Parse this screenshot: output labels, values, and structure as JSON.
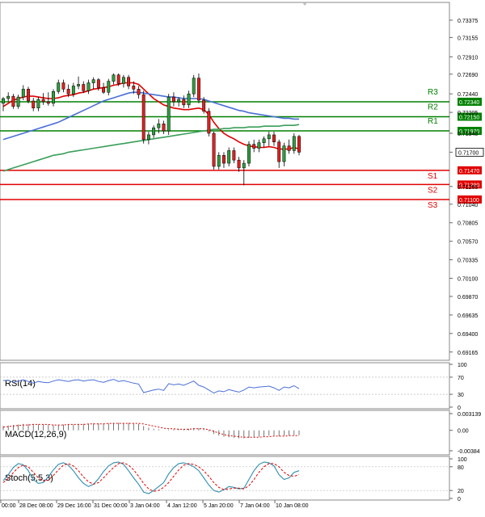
{
  "chart_data": {
    "type": "line",
    "title": "",
    "y_axis": {
      "ticks": [
        "0.73375",
        "0.73155",
        "0.72910",
        "0.72690",
        "0.72440",
        "0.72205",
        "0.71940",
        "0.71700",
        "0.71265",
        "0.71040",
        "0.70805",
        "0.70570",
        "0.70335",
        "0.70100",
        "0.69870",
        "0.69635",
        "0.69400",
        "0.69165"
      ],
      "ylim": [
        0.6906,
        0.736
      ]
    },
    "x_axis": {
      "tick_labels": [
        "00:00",
        "28 Dec 08:00",
        "29 Dec 16:00",
        "31 Dec 00:00",
        "3 Jan 04:00",
        "4 Jan 12:00",
        "5 Jan 20:00",
        "7 Jan 04:00",
        "10 Jan 08:00"
      ]
    },
    "levels": [
      {
        "name": "R3",
        "value": 0.7234,
        "label": "0.72340",
        "color": "#008000"
      },
      {
        "name": "R2",
        "value": 0.7215,
        "label": "0.72150",
        "color": "#008000"
      },
      {
        "name": "R1",
        "value": 0.7197,
        "label": "0.71970",
        "color": "#008000"
      },
      {
        "name": "S1",
        "value": 0.7147,
        "label": "0.71470",
        "color": "#e00000"
      },
      {
        "name": "S2",
        "value": 0.7129,
        "label": "0.71290",
        "color": "#e00000"
      },
      {
        "name": "S3",
        "value": 0.711,
        "label": "0.71100",
        "color": "#e00000"
      }
    ],
    "current_price": {
      "value": 0.717,
      "label": "0.71700"
    },
    "candles": [
      [
        0.7232,
        0.724,
        0.7222,
        0.7238
      ],
      [
        0.7238,
        0.7246,
        0.7234,
        0.7241
      ],
      [
        0.7241,
        0.7244,
        0.7225,
        0.7228
      ],
      [
        0.7228,
        0.7243,
        0.7225,
        0.724
      ],
      [
        0.724,
        0.7255,
        0.7236,
        0.725
      ],
      [
        0.725,
        0.7253,
        0.7232,
        0.7235
      ],
      [
        0.7235,
        0.7239,
        0.7222,
        0.7226
      ],
      [
        0.7226,
        0.724,
        0.7222,
        0.7237
      ],
      [
        0.7237,
        0.7245,
        0.723,
        0.7234
      ],
      [
        0.7234,
        0.7246,
        0.7229,
        0.7232
      ],
      [
        0.7232,
        0.725,
        0.7228,
        0.7247
      ],
      [
        0.7247,
        0.7262,
        0.7244,
        0.7258
      ],
      [
        0.7258,
        0.7262,
        0.7246,
        0.725
      ],
      [
        0.725,
        0.7256,
        0.724,
        0.7244
      ],
      [
        0.7244,
        0.7258,
        0.724,
        0.7254
      ],
      [
        0.7254,
        0.7266,
        0.725,
        0.7256
      ],
      [
        0.7256,
        0.726,
        0.7245,
        0.7248
      ],
      [
        0.7248,
        0.7262,
        0.7244,
        0.7258
      ],
      [
        0.7258,
        0.7265,
        0.725,
        0.7262
      ],
      [
        0.7262,
        0.7264,
        0.7248,
        0.7252
      ],
      [
        0.7252,
        0.7258,
        0.7244,
        0.7246
      ],
      [
        0.7246,
        0.7263,
        0.7242,
        0.726
      ],
      [
        0.726,
        0.727,
        0.7256,
        0.7268
      ],
      [
        0.7268,
        0.727,
        0.7254,
        0.7257
      ],
      [
        0.7257,
        0.7268,
        0.7252,
        0.7265
      ],
      [
        0.7265,
        0.7268,
        0.725,
        0.7254
      ],
      [
        0.7254,
        0.726,
        0.7244,
        0.725
      ],
      [
        0.725,
        0.7254,
        0.7238,
        0.7243
      ],
      [
        0.7243,
        0.7248,
        0.7181,
        0.7186
      ],
      [
        0.7186,
        0.7196,
        0.718,
        0.7192
      ],
      [
        0.7192,
        0.7204,
        0.7188,
        0.7201
      ],
      [
        0.7201,
        0.7212,
        0.7194,
        0.7206
      ],
      [
        0.7206,
        0.721,
        0.7193,
        0.7197
      ],
      [
        0.7197,
        0.7244,
        0.7192,
        0.724
      ],
      [
        0.724,
        0.7246,
        0.7228,
        0.7234
      ],
      [
        0.7234,
        0.724,
        0.7228,
        0.7237
      ],
      [
        0.7237,
        0.7242,
        0.7226,
        0.723
      ],
      [
        0.723,
        0.7248,
        0.7226,
        0.7244
      ],
      [
        0.7244,
        0.7268,
        0.724,
        0.7264
      ],
      [
        0.7264,
        0.727,
        0.7232,
        0.7236
      ],
      [
        0.7236,
        0.724,
        0.7219,
        0.7222
      ],
      [
        0.7222,
        0.7226,
        0.719,
        0.7194
      ],
      [
        0.7194,
        0.7196,
        0.7148,
        0.7152
      ],
      [
        0.7152,
        0.717,
        0.7148,
        0.7166
      ],
      [
        0.7166,
        0.717,
        0.715,
        0.7156
      ],
      [
        0.7156,
        0.7176,
        0.7152,
        0.7172
      ],
      [
        0.7172,
        0.7176,
        0.7156,
        0.716
      ],
      [
        0.716,
        0.7164,
        0.7145,
        0.715
      ],
      [
        0.715,
        0.716,
        0.7128,
        0.7156
      ],
      [
        0.7156,
        0.7184,
        0.7152,
        0.718
      ],
      [
        0.718,
        0.7186,
        0.717,
        0.7175
      ],
      [
        0.7175,
        0.7186,
        0.717,
        0.7182
      ],
      [
        0.7182,
        0.719,
        0.7176,
        0.7187
      ],
      [
        0.7187,
        0.7196,
        0.7178,
        0.7192
      ],
      [
        0.7192,
        0.7196,
        0.7178,
        0.7183
      ],
      [
        0.7183,
        0.7186,
        0.715,
        0.7158
      ],
      [
        0.7158,
        0.7182,
        0.7152,
        0.7178
      ],
      [
        0.7178,
        0.7186,
        0.7168,
        0.7172
      ],
      [
        0.7172,
        0.7194,
        0.7168,
        0.719
      ],
      [
        0.719,
        0.7192,
        0.7166,
        0.717
      ]
    ],
    "moving_averages": [
      {
        "name": "MA red",
        "color": "#e00000",
        "values": [
          0.7228,
          0.7232,
          0.7236,
          0.7238,
          0.724,
          0.7241,
          0.7241,
          0.724,
          0.7239,
          0.7238,
          0.7238,
          0.7239,
          0.7241,
          0.7242,
          0.7243,
          0.7245,
          0.7246,
          0.7248,
          0.725,
          0.7251,
          0.7252,
          0.7253,
          0.7255,
          0.7256,
          0.7258,
          0.7258,
          0.7258,
          0.7256,
          0.725,
          0.7244,
          0.7238,
          0.7234,
          0.723,
          0.7228,
          0.7226,
          0.7225,
          0.7224,
          0.7224,
          0.7225,
          0.7226,
          0.7224,
          0.7218,
          0.7208,
          0.72,
          0.7194,
          0.719,
          0.7187,
          0.7183,
          0.718,
          0.7178,
          0.7177,
          0.7176,
          0.7176,
          0.7177,
          0.7176,
          0.7174,
          0.7174,
          0.7174,
          0.7176,
          0.7174
        ]
      },
      {
        "name": "MA blue",
        "color": "#4a6fd6",
        "values": [
          0.7186,
          0.7188,
          0.719,
          0.7192,
          0.7194,
          0.7196,
          0.7198,
          0.72,
          0.7202,
          0.7204,
          0.7206,
          0.7208,
          0.7211,
          0.7214,
          0.7217,
          0.722,
          0.7223,
          0.7226,
          0.7229,
          0.7232,
          0.7235,
          0.7237,
          0.7239,
          0.7241,
          0.7243,
          0.7245,
          0.7246,
          0.7246,
          0.7245,
          0.7244,
          0.7243,
          0.7242,
          0.7241,
          0.724,
          0.724,
          0.7239,
          0.7238,
          0.7238,
          0.7238,
          0.7238,
          0.7237,
          0.7235,
          0.7233,
          0.7231,
          0.7229,
          0.7227,
          0.7225,
          0.7223,
          0.7222,
          0.722,
          0.7219,
          0.7218,
          0.7217,
          0.7216,
          0.7215,
          0.7214,
          0.7213,
          0.7213,
          0.7212,
          0.7212
        ]
      },
      {
        "name": "MA green",
        "color": "#3a9e5a",
        "values": [
          0.7146,
          0.7148,
          0.715,
          0.7152,
          0.7154,
          0.7156,
          0.7158,
          0.716,
          0.7162,
          0.7164,
          0.7166,
          0.7167,
          0.7168,
          0.717,
          0.7171,
          0.7172,
          0.7173,
          0.7174,
          0.7175,
          0.7176,
          0.7177,
          0.7178,
          0.7179,
          0.718,
          0.7181,
          0.7182,
          0.7183,
          0.7184,
          0.7185,
          0.7186,
          0.7187,
          0.7188,
          0.7189,
          0.719,
          0.7191,
          0.7192,
          0.7193,
          0.7194,
          0.7195,
          0.7196,
          0.7197,
          0.7198,
          0.7199,
          0.7199,
          0.72,
          0.72,
          0.7201,
          0.7201,
          0.7201,
          0.7202,
          0.7202,
          0.7202,
          0.7203,
          0.7203,
          0.7203,
          0.7203,
          0.7204,
          0.7204,
          0.7204,
          0.7205
        ]
      }
    ],
    "indicators": {
      "rsi": {
        "label": "RSI(14)",
        "ticks": [
          "100",
          "70",
          "30",
          "0"
        ],
        "ylim": [
          0,
          100
        ],
        "color": "#4a6fd6",
        "values": [
          62,
          63,
          58,
          61,
          64,
          60,
          56,
          60,
          58,
          57,
          61,
          64,
          62,
          60,
          63,
          64,
          61,
          63,
          64,
          60,
          58,
          62,
          65,
          60,
          62,
          59,
          56,
          54,
          34,
          37,
          40,
          42,
          39,
          55,
          52,
          54,
          51,
          56,
          61,
          51,
          47,
          40,
          33,
          38,
          36,
          41,
          38,
          35,
          40,
          47,
          45,
          47,
          48,
          49,
          45,
          39,
          47,
          45,
          50,
          43
        ]
      },
      "macd": {
        "label": "MACD(12,26,9)",
        "ticks": [
          "0.003139",
          "0.00",
          "-0.00384"
        ],
        "ylim": [
          -0.00384,
          0.003139
        ],
        "color": "#e00000",
        "histogram": [
          0.0008,
          0.0009,
          0.001,
          0.0011,
          0.0012,
          0.0012,
          0.0012,
          0.0011,
          0.0011,
          0.001,
          0.001,
          0.001,
          0.0011,
          0.0011,
          0.0011,
          0.0012,
          0.0012,
          0.0012,
          0.0013,
          0.0013,
          0.0013,
          0.0013,
          0.0014,
          0.0014,
          0.0014,
          0.0014,
          0.0013,
          0.0012,
          0.0008,
          0.0005,
          0.0003,
          0.0002,
          0.0,
          0.0001,
          0.0002,
          0.0002,
          0.0002,
          0.0003,
          0.0004,
          0.0004,
          0.0002,
          -0.0002,
          -0.0007,
          -0.001,
          -0.0012,
          -0.0013,
          -0.0014,
          -0.0015,
          -0.0015,
          -0.0014,
          -0.0013,
          -0.0012,
          -0.0011,
          -0.001,
          -0.001,
          -0.0011,
          -0.001,
          -0.001,
          -0.0009,
          -0.0009
        ],
        "signal": [
          0.0006,
          0.0007,
          0.0008,
          0.0009,
          0.001,
          0.001,
          0.0011,
          0.0011,
          0.0011,
          0.0011,
          0.001,
          0.001,
          0.001,
          0.0011,
          0.0011,
          0.0011,
          0.0011,
          0.0012,
          0.0012,
          0.0012,
          0.0012,
          0.0013,
          0.0013,
          0.0013,
          0.0013,
          0.0013,
          0.0013,
          0.0013,
          0.0012,
          0.001,
          0.0008,
          0.0006,
          0.0004,
          0.0003,
          0.0003,
          0.0002,
          0.0002,
          0.0002,
          0.0003,
          0.0003,
          0.0003,
          0.0001,
          -0.0002,
          -0.0005,
          -0.0008,
          -0.001,
          -0.0011,
          -0.0012,
          -0.0013,
          -0.0013,
          -0.0013,
          -0.0013,
          -0.0012,
          -0.0012,
          -0.0011,
          -0.0011,
          -0.0011,
          -0.001,
          -0.001,
          -0.001
        ]
      },
      "stoch": {
        "label": "Stoch(5,5,3)",
        "ticks": [
          "100",
          "80",
          "20",
          "0"
        ],
        "ylim": [
          0,
          100
        ],
        "k_color": "#2f8fb0",
        "d_color": "#e00000",
        "k": [
          45,
          60,
          78,
          88,
          85,
          70,
          48,
          38,
          40,
          55,
          72,
          86,
          90,
          84,
          70,
          52,
          38,
          30,
          36,
          50,
          68,
          82,
          90,
          92,
          86,
          70,
          52,
          36,
          16,
          12,
          20,
          30,
          40,
          62,
          78,
          88,
          90,
          86,
          80,
          70,
          52,
          34,
          20,
          16,
          22,
          30,
          28,
          24,
          26,
          48,
          70,
          86,
          92,
          90,
          82,
          60,
          48,
          52,
          66,
          70
        ],
        "d": [
          40,
          50,
          65,
          78,
          84,
          80,
          66,
          52,
          44,
          46,
          58,
          72,
          84,
          88,
          82,
          70,
          54,
          42,
          36,
          40,
          52,
          66,
          78,
          88,
          90,
          84,
          72,
          56,
          38,
          24,
          18,
          20,
          28,
          40,
          56,
          72,
          84,
          88,
          86,
          80,
          70,
          56,
          40,
          28,
          22,
          24,
          26,
          26,
          24,
          32,
          48,
          66,
          80,
          88,
          88,
          80,
          66,
          58,
          56,
          60
        ]
      }
    }
  }
}
